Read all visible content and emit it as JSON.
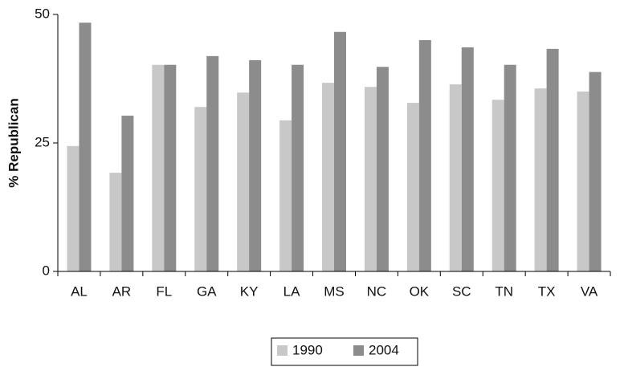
{
  "chart_data": {
    "type": "bar",
    "y_label": "% Republican",
    "categories": [
      "AL",
      "AR",
      "FL",
      "GA",
      "KY",
      "LA",
      "MS",
      "NC",
      "OK",
      "SC",
      "TN",
      "TX",
      "VA"
    ],
    "series": [
      {
        "name": "1990",
        "color": "#c8c8c8",
        "values": [
          24.4,
          19.2,
          40.2,
          32,
          34.8,
          29.4,
          36.7,
          35.9,
          32.8,
          36.4,
          33.4,
          35.6,
          35
        ]
      },
      {
        "name": "2004",
        "color": "#8c8c8c",
        "values": [
          48.4,
          30.3,
          40.2,
          41.9,
          41.1,
          40.2,
          46.6,
          39.8,
          45,
          43.6,
          40.2,
          43.3,
          38.8
        ]
      }
    ],
    "ylim": [
      0,
      50
    ],
    "yticks": [
      0,
      25,
      50
    ],
    "grid": false,
    "legend": "bottom"
  }
}
